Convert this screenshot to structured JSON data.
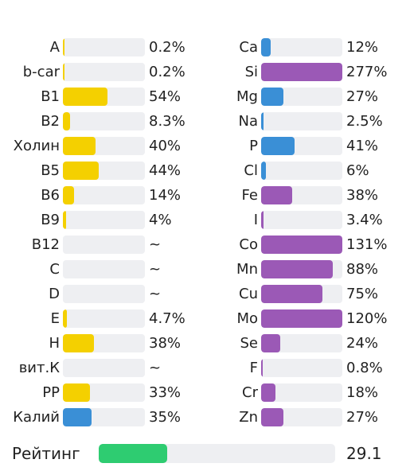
{
  "colors": {
    "yellow": "#f4d000",
    "blue": "#3a8fd6",
    "purple": "#9b59b6",
    "green": "#2ecc71",
    "track": "#eeeff2"
  },
  "left": [
    {
      "label": "A",
      "value": "0.2%",
      "fill": 0.2,
      "color": "yellow"
    },
    {
      "label": "b-car",
      "value": "0.2%",
      "fill": 0.2,
      "color": "yellow"
    },
    {
      "label": "B1",
      "value": "54%",
      "fill": 54,
      "color": "yellow"
    },
    {
      "label": "B2",
      "value": "8.3%",
      "fill": 8.3,
      "color": "yellow"
    },
    {
      "label": "Холин",
      "value": "40%",
      "fill": 40,
      "color": "yellow"
    },
    {
      "label": "B5",
      "value": "44%",
      "fill": 44,
      "color": "yellow"
    },
    {
      "label": "B6",
      "value": "14%",
      "fill": 14,
      "color": "yellow"
    },
    {
      "label": "B9",
      "value": "4%",
      "fill": 4,
      "color": "yellow"
    },
    {
      "label": "B12",
      "value": "~",
      "fill": 0,
      "color": "yellow"
    },
    {
      "label": "C",
      "value": "~",
      "fill": 0,
      "color": "yellow"
    },
    {
      "label": "D",
      "value": "~",
      "fill": 0,
      "color": "yellow"
    },
    {
      "label": "E",
      "value": "4.7%",
      "fill": 4.7,
      "color": "yellow"
    },
    {
      "label": "H",
      "value": "38%",
      "fill": 38,
      "color": "yellow"
    },
    {
      "label": "вит.К",
      "value": "~",
      "fill": 0,
      "color": "yellow"
    },
    {
      "label": "PP",
      "value": "33%",
      "fill": 33,
      "color": "yellow"
    },
    {
      "label": "Калий",
      "value": "35%",
      "fill": 35,
      "color": "blue"
    }
  ],
  "right": [
    {
      "label": "Ca",
      "value": "12%",
      "fill": 12,
      "color": "blue"
    },
    {
      "label": "Si",
      "value": "277%",
      "fill": 277,
      "color": "purple"
    },
    {
      "label": "Mg",
      "value": "27%",
      "fill": 27,
      "color": "blue"
    },
    {
      "label": "Na",
      "value": "2.5%",
      "fill": 2.5,
      "color": "blue"
    },
    {
      "label": "P",
      "value": "41%",
      "fill": 41,
      "color": "blue"
    },
    {
      "label": "Cl",
      "value": "6%",
      "fill": 6,
      "color": "blue"
    },
    {
      "label": "Fe",
      "value": "38%",
      "fill": 38,
      "color": "purple"
    },
    {
      "label": "I",
      "value": "3.4%",
      "fill": 3.4,
      "color": "purple"
    },
    {
      "label": "Co",
      "value": "131%",
      "fill": 131,
      "color": "purple"
    },
    {
      "label": "Mn",
      "value": "88%",
      "fill": 88,
      "color": "purple"
    },
    {
      "label": "Cu",
      "value": "75%",
      "fill": 75,
      "color": "purple"
    },
    {
      "label": "Mo",
      "value": "120%",
      "fill": 120,
      "color": "purple"
    },
    {
      "label": "Se",
      "value": "24%",
      "fill": 24,
      "color": "purple"
    },
    {
      "label": "F",
      "value": "0.8%",
      "fill": 0.8,
      "color": "purple"
    },
    {
      "label": "Cr",
      "value": "18%",
      "fill": 18,
      "color": "purple"
    },
    {
      "label": "Zn",
      "value": "27%",
      "fill": 27,
      "color": "purple"
    }
  ],
  "rating": {
    "label": "Рейтинг",
    "value": "29.1",
    "fill": 29.1,
    "color": "green"
  }
}
